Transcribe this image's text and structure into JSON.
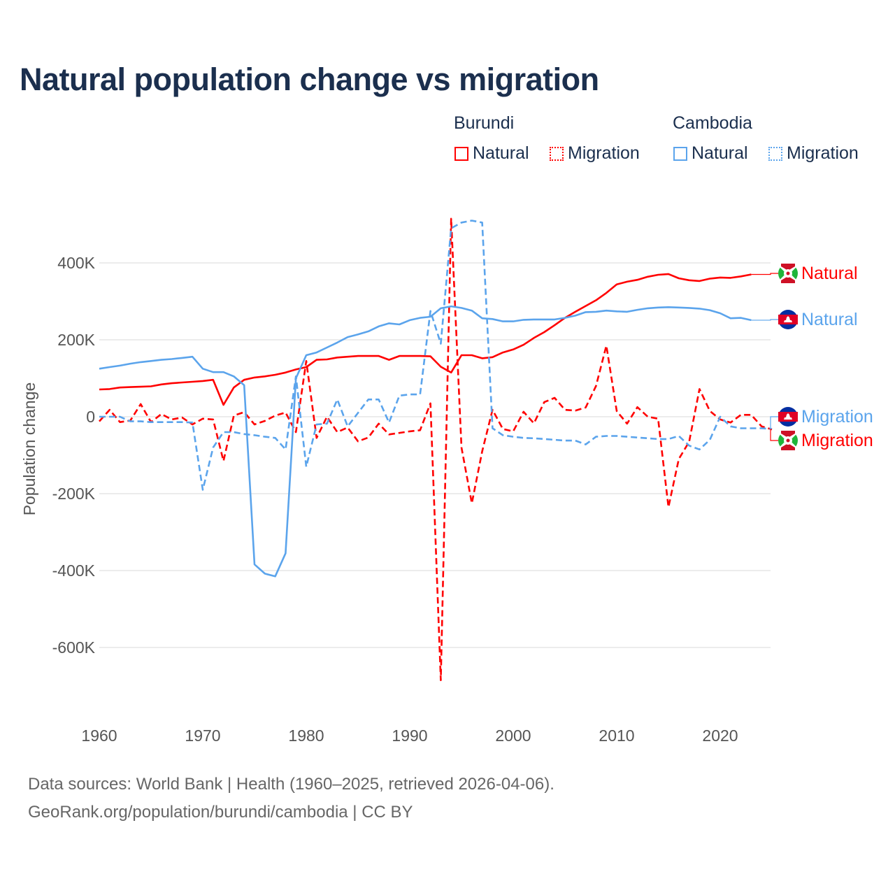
{
  "title": "Natural population change vs migration",
  "legend": {
    "groups": [
      {
        "name": "Burundi",
        "items": [
          "Natural",
          "Migration"
        ],
        "color": "#ff0000"
      },
      {
        "name": "Cambodia",
        "items": [
          "Natural",
          "Migration"
        ],
        "color": "#5ba4ec"
      }
    ]
  },
  "end_labels": {
    "burundi_natural": "Natural",
    "cambodia_natural": "Natural",
    "cambodia_migration": "Migration",
    "burundi_migration": "Migration"
  },
  "footer": {
    "line1": "Data sources: World Bank | Health (1960–2025, retrieved 2026-04-06).",
    "line2": "GeoRank.org/population/burundi/cambodia | CC BY"
  },
  "chart_data": {
    "type": "line",
    "title": "Natural population change vs migration",
    "xlabel": "",
    "ylabel": "Population change",
    "xlim": [
      1960,
      2025
    ],
    "ylim": [
      -700,
      520
    ],
    "y_unit": "thousands",
    "x_ticks": [
      "1960",
      "1970",
      "1980",
      "1990",
      "2000",
      "2010",
      "2020"
    ],
    "y_ticks": [
      {
        "v": 400,
        "label": "400K"
      },
      {
        "v": 200,
        "label": "200K"
      },
      {
        "v": 0,
        "label": "0"
      },
      {
        "v": -200,
        "label": "-200K"
      },
      {
        "v": -400,
        "label": "-400K"
      },
      {
        "v": -600,
        "label": "-600K"
      }
    ],
    "grid": true,
    "series": [
      {
        "name": "Burundi Natural",
        "color": "#ff0000",
        "dash": false,
        "start": 1960,
        "values": [
          71,
          72,
          76,
          77,
          78,
          79,
          84,
          87,
          89,
          91,
          93,
          96,
          31,
          76,
          96,
          102,
          105,
          109,
          115,
          123,
          129,
          148,
          149,
          154,
          156,
          158,
          158,
          158,
          148,
          158,
          158,
          158,
          157,
          130,
          115,
          160,
          160,
          152,
          155,
          167,
          175,
          187,
          205,
          220,
          238,
          257,
          273,
          288,
          303,
          322,
          344,
          351,
          356,
          364,
          369,
          371,
          360,
          355,
          353,
          359,
          362,
          361,
          365,
          370
        ]
      },
      {
        "name": "Burundi Migration",
        "color": "#ff0000",
        "dash": true,
        "start": 1960,
        "values": [
          -12,
          18,
          -14,
          -10,
          33,
          -14,
          7,
          -7,
          -2,
          -20,
          -5,
          -7,
          -115,
          3,
          12,
          -20,
          -11,
          3,
          11,
          -40,
          145,
          -55,
          0,
          -40,
          -28,
          -64,
          -54,
          -18,
          -46,
          -42,
          -38,
          -35,
          35,
          -685,
          515,
          -80,
          -225,
          -90,
          18,
          -32,
          -38,
          13,
          -17,
          38,
          49,
          18,
          16,
          24,
          80,
          185,
          15,
          -18,
          25,
          0,
          -5,
          -235,
          -110,
          -65,
          72,
          15,
          -7,
          -15,
          5,
          5,
          -25,
          -33
        ]
      },
      {
        "name": "Cambodia Natural",
        "color": "#5ba4ec",
        "dash": false,
        "start": 1960,
        "values": [
          125,
          129,
          133,
          138,
          142,
          145,
          148,
          150,
          153,
          156,
          125,
          116,
          116,
          105,
          82,
          -384,
          -408,
          -415,
          -355,
          100,
          160,
          167,
          180,
          193,
          207,
          214,
          222,
          235,
          243,
          240,
          251,
          257,
          260,
          282,
          287,
          283,
          276,
          256,
          254,
          248,
          248,
          252,
          253,
          253,
          253,
          257,
          263,
          272,
          273,
          276,
          274,
          273,
          278,
          282,
          284,
          285,
          284,
          283,
          281,
          277,
          269,
          256,
          257,
          251
        ]
      },
      {
        "name": "Cambodia Migration",
        "color": "#5ba4ec",
        "dash": true,
        "start": 1960,
        "values": [
          0,
          0,
          0,
          -12,
          -12,
          -14,
          -14,
          -14,
          -14,
          -15,
          -190,
          -80,
          -40,
          -40,
          -45,
          -48,
          -52,
          -55,
          -85,
          105,
          -130,
          -20,
          -18,
          45,
          -25,
          10,
          45,
          45,
          -15,
          55,
          58,
          58,
          275,
          190,
          490,
          505,
          510,
          505,
          -30,
          -48,
          -52,
          -55,
          -56,
          -58,
          -60,
          -62,
          -62,
          -72,
          -52,
          -50,
          -50,
          -52,
          -54,
          -56,
          -58,
          -58,
          -50,
          -75,
          -85,
          -60,
          0,
          -25,
          -30,
          -30,
          -30,
          -32
        ]
      }
    ]
  }
}
